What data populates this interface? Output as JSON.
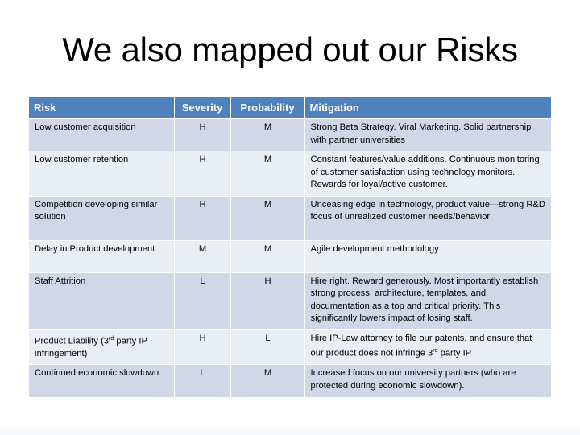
{
  "title": "We also mapped out our Risks",
  "table": {
    "headers": [
      "Risk",
      "Severity",
      "Probability",
      "Mitigation"
    ],
    "rows": [
      {
        "risk": "Low customer acquisition",
        "severity": "H",
        "probability": "M",
        "mitigation": "Strong Beta Strategy.  Viral Marketing.  Solid partnership with partner universities"
      },
      {
        "risk": "Low customer retention",
        "severity": "H",
        "probability": "M",
        "mitigation": "Constant features/value additions.  Continuous monitoring of customer satisfaction using technology monitors. Rewards for loyal/active customer."
      },
      {
        "risk": "Competition developing similar solution",
        "severity": "H",
        "probability": "M",
        "mitigation": "Unceasing edge in technology, product value—strong R&D focus of unrealized customer needs/behavior"
      },
      {
        "risk": "Delay in Product development",
        "severity": "M",
        "probability": "M",
        "mitigation": "Agile development methodology"
      },
      {
        "risk": "Staff Attrition",
        "severity": "L",
        "probability": "H",
        "mitigation": "Hire right.  Reward generously.  Most importantly establish strong process, architecture, templates, and documentation as a top and critical priority.  This significantly lowers impact of losing staff."
      },
      {
        "risk_pre": "Product Liability (3",
        "risk_sup": "rd",
        "risk_post": " party IP infringement)",
        "severity": "H",
        "probability": "L",
        "mitigation_pre": "Hire IP-Law attorney to file  our patents, and ensure that our product does not infringe 3",
        "mitigation_sup": "rd",
        "mitigation_post": " party IP"
      },
      {
        "risk": "Continued economic slowdown",
        "severity": "L",
        "probability": "M",
        "mitigation": "Increased focus on our university partners (who are protected during economic slowdown)."
      }
    ]
  }
}
